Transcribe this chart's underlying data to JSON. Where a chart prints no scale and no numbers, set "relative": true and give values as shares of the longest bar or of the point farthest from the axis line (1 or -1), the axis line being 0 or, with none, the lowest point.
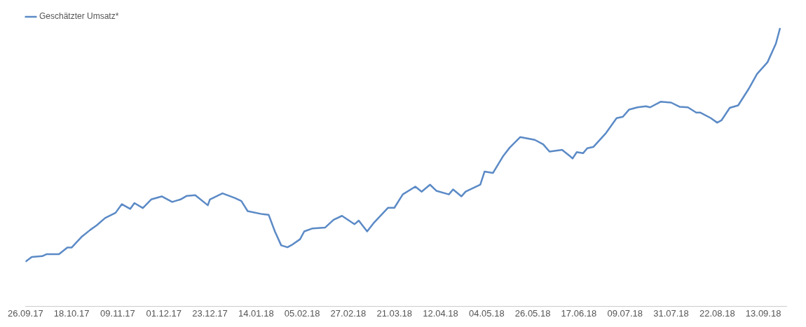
{
  "chart_data": {
    "type": "line",
    "relative": true,
    "legend": "top left",
    "marker": "none",
    "line_style": "solid",
    "xlim": [
      "2017-09-26",
      "2018-09-24"
    ],
    "xticks": [
      {
        "value": "2017-09-26",
        "label": "26.09.17"
      },
      {
        "value": "2017-10-18",
        "label": "18.10.17"
      },
      {
        "value": "2017-11-09",
        "label": "09.11.17"
      },
      {
        "value": "2017-12-01",
        "label": "01.12.17"
      },
      {
        "value": "2017-12-23",
        "label": "23.12.17"
      },
      {
        "value": "2018-01-14",
        "label": "14.01.18"
      },
      {
        "value": "2018-02-05",
        "label": "05.02.18"
      },
      {
        "value": "2018-02-27",
        "label": "27.02.18"
      },
      {
        "value": "2018-03-21",
        "label": "21.03.18"
      },
      {
        "value": "2018-04-12",
        "label": "12.04.18"
      },
      {
        "value": "2018-05-04",
        "label": "04.05.18"
      },
      {
        "value": "2018-05-26",
        "label": "26.05.18"
      },
      {
        "value": "2018-06-17",
        "label": "17.06.18"
      },
      {
        "value": "2018-07-09",
        "label": "09.07.18"
      },
      {
        "value": "2018-07-31",
        "label": "31.07.18"
      },
      {
        "value": "2018-08-22",
        "label": "22.08.18"
      },
      {
        "value": "2018-09-13",
        "label": "13.09.18"
      }
    ],
    "x": [
      "2017-09-26",
      "2017-09-29",
      "2017-10-04",
      "2017-10-06",
      "2017-10-12",
      "2017-10-16",
      "2017-10-18",
      "2017-10-23",
      "2017-10-27",
      "2017-10-30",
      "2017-11-03",
      "2017-11-08",
      "2017-11-11",
      "2017-11-15",
      "2017-11-17",
      "2017-11-21",
      "2017-11-25",
      "2017-11-30",
      "2017-12-05",
      "2017-12-09",
      "2017-12-12",
      "2017-12-16",
      "2017-12-22",
      "2017-12-23",
      "2017-12-29",
      "2018-01-04",
      "2018-01-07",
      "2018-01-10",
      "2018-01-17",
      "2018-01-20",
      "2018-01-23",
      "2018-01-26",
      "2018-01-29",
      "2018-01-31",
      "2018-02-04",
      "2018-02-06",
      "2018-02-10",
      "2018-02-16",
      "2018-02-20",
      "2018-02-24",
      "2018-03-02",
      "2018-03-04",
      "2018-03-08",
      "2018-03-11",
      "2018-03-18",
      "2018-03-21",
      "2018-03-25",
      "2018-03-31",
      "2018-04-03",
      "2018-04-07",
      "2018-04-10",
      "2018-04-16",
      "2018-04-18",
      "2018-04-22",
      "2018-04-24",
      "2018-05-01",
      "2018-05-03",
      "2018-05-07",
      "2018-05-12",
      "2018-05-15",
      "2018-05-20",
      "2018-05-27",
      "2018-05-31",
      "2018-06-03",
      "2018-06-09",
      "2018-06-13",
      "2018-06-14",
      "2018-06-16",
      "2018-06-19",
      "2018-06-21",
      "2018-06-24",
      "2018-06-30",
      "2018-07-05",
      "2018-07-08",
      "2018-07-11",
      "2018-07-15",
      "2018-07-19",
      "2018-07-21",
      "2018-07-26",
      "2018-07-31",
      "2018-08-04",
      "2018-08-08",
      "2018-08-12",
      "2018-08-14",
      "2018-08-19",
      "2018-08-22",
      "2018-08-24",
      "2018-08-28",
      "2018-09-01",
      "2018-09-06",
      "2018-09-10",
      "2018-09-15",
      "2018-09-19",
      "2018-09-21"
    ],
    "series": [
      {
        "name": "Geschätzter Umsatz*",
        "color": "#5b8ac6",
        "values": [
          0.16,
          0.177,
          0.18,
          0.187,
          0.187,
          0.211,
          0.211,
          0.251,
          0.275,
          0.291,
          0.317,
          0.336,
          0.367,
          0.35,
          0.371,
          0.353,
          0.384,
          0.395,
          0.375,
          0.384,
          0.397,
          0.399,
          0.363,
          0.384,
          0.406,
          0.389,
          0.378,
          0.342,
          0.331,
          0.329,
          0.269,
          0.219,
          0.212,
          0.22,
          0.241,
          0.269,
          0.28,
          0.283,
          0.311,
          0.325,
          0.295,
          0.308,
          0.269,
          0.298,
          0.354,
          0.354,
          0.402,
          0.43,
          0.412,
          0.437,
          0.415,
          0.402,
          0.42,
          0.395,
          0.412,
          0.437,
          0.484,
          0.479,
          0.541,
          0.57,
          0.608,
          0.598,
          0.582,
          0.556,
          0.562,
          0.538,
          0.531,
          0.554,
          0.55,
          0.568,
          0.573,
          0.623,
          0.676,
          0.681,
          0.707,
          0.715,
          0.719,
          0.715,
          0.735,
          0.732,
          0.717,
          0.715,
          0.696,
          0.696,
          0.676,
          0.66,
          0.668,
          0.713,
          0.722,
          0.781,
          0.835,
          0.877,
          0.944,
          1
        ]
      }
    ]
  }
}
